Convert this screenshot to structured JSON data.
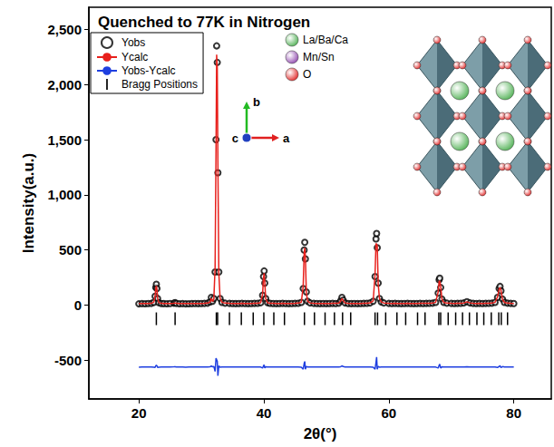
{
  "chart_data": {
    "type": "line",
    "title": "Quenched to 77K in Nitrogen",
    "x_label": "2θ(°)",
    "y_label": "Intensity(a.u.)",
    "xlim": [
      12,
      86
    ],
    "xticks": [
      20,
      40,
      60,
      80
    ],
    "ylim": [
      -850,
      2700
    ],
    "yticks": [
      -500,
      0,
      500,
      1000,
      1500,
      2000,
      2500
    ],
    "grid": false,
    "legend": "upper left",
    "x": [
      20,
      20.5,
      21,
      21.5,
      22,
      22.4,
      22.6,
      22.7,
      22.8,
      22.9,
      23.0,
      23.2,
      23.6,
      24,
      24.5,
      25,
      25.6,
      25.8,
      26,
      26.5,
      27,
      27.5,
      28,
      28.5,
      29,
      29.5,
      30,
      30.5,
      31,
      31.4,
      31.6,
      31.8,
      32.0,
      32.2,
      32.35,
      32.45,
      32.55,
      32.65,
      32.8,
      33.0,
      33.3,
      33.8,
      34.5,
      35,
      35.5,
      36,
      36.5,
      37,
      37.5,
      38,
      38.5,
      39,
      39.5,
      39.8,
      39.95,
      40.05,
      40.15,
      40.3,
      40.6,
      41,
      41.5,
      42,
      42.5,
      43,
      43.5,
      44,
      44.5,
      45,
      45.5,
      46,
      46.3,
      46.45,
      46.55,
      46.65,
      46.8,
      47,
      47.4,
      48,
      48.5,
      49,
      49.5,
      50,
      50.5,
      51,
      51.5,
      52,
      52.3,
      52.5,
      52.7,
      53,
      53.5,
      54,
      54.5,
      55,
      55.5,
      56,
      56.5,
      57,
      57.5,
      57.8,
      57.95,
      58.05,
      58.15,
      58.3,
      58.5,
      58.8,
      59.2,
      60,
      60.5,
      61,
      61.5,
      62,
      62.5,
      63,
      63.5,
      64,
      64.5,
      65,
      65.5,
      66,
      66.5,
      67,
      67.5,
      67.9,
      68.05,
      68.15,
      68.3,
      68.5,
      68.8,
      69.3,
      70,
      70.5,
      71,
      71.5,
      72,
      72.5,
      73,
      73.5,
      74,
      74.5,
      75,
      75.5,
      76,
      76.5,
      77,
      77.4,
      77.65,
      77.8,
      77.95,
      78.2,
      78.5,
      79,
      79.5,
      80
    ],
    "series": [
      {
        "name": "Yobs",
        "type": "scatter",
        "marker": "open_circle",
        "color": "#000000",
        "values": [
          12,
          14,
          13,
          15,
          16,
          25,
          80,
          160,
          190,
          150,
          60,
          22,
          15,
          14,
          13,
          15,
          18,
          22,
          16,
          13,
          14,
          12,
          13,
          14,
          15,
          14,
          15,
          16,
          18,
          30,
          70,
          35,
          60,
          300,
          1500,
          2350,
          2200,
          1200,
          300,
          60,
          25,
          18,
          16,
          15,
          14,
          15,
          16,
          15,
          14,
          15,
          16,
          17,
          22,
          90,
          260,
          310,
          200,
          60,
          22,
          17,
          15,
          14,
          15,
          16,
          15,
          14,
          15,
          16,
          17,
          25,
          150,
          500,
          570,
          420,
          120,
          35,
          20,
          16,
          15,
          14,
          15,
          14,
          15,
          16,
          15,
          18,
          40,
          70,
          45,
          20,
          15,
          14,
          15,
          14,
          15,
          16,
          17,
          20,
          35,
          260,
          600,
          650,
          520,
          200,
          60,
          28,
          20,
          16,
          15,
          16,
          15,
          14,
          15,
          16,
          15,
          14,
          15,
          16,
          15,
          16,
          17,
          18,
          25,
          110,
          230,
          245,
          160,
          55,
          25,
          18,
          16,
          15,
          16,
          17,
          20,
          32,
          20,
          16,
          15,
          16,
          15,
          16,
          17,
          18,
          25,
          70,
          150,
          170,
          130,
          55,
          25,
          18,
          16,
          15
        ]
      },
      {
        "name": "Ycalc",
        "type": "line",
        "line_style": "solid",
        "color": "#e8201c",
        "values": [
          14,
          14,
          14,
          15,
          16,
          28,
          85,
          150,
          175,
          140,
          65,
          24,
          16,
          15,
          14,
          15,
          17,
          20,
          16,
          14,
          14,
          14,
          14,
          14,
          15,
          15,
          15,
          16,
          18,
          28,
          62,
          33,
          55,
          340,
          1420,
          2270,
          2150,
          1280,
          290,
          62,
          26,
          18,
          16,
          15,
          15,
          15,
          16,
          15,
          15,
          15,
          16,
          17,
          23,
          100,
          250,
          290,
          210,
          58,
          22,
          17,
          16,
          15,
          15,
          16,
          15,
          15,
          15,
          16,
          18,
          27,
          170,
          470,
          520,
          440,
          115,
          36,
          20,
          16,
          15,
          15,
          15,
          15,
          15,
          16,
          16,
          18,
          38,
          60,
          42,
          20,
          16,
          15,
          15,
          15,
          15,
          16,
          17,
          21,
          38,
          280,
          560,
          560,
          540,
          195,
          62,
          28,
          20,
          16,
          15,
          16,
          15,
          15,
          15,
          16,
          15,
          15,
          15,
          16,
          16,
          16,
          17,
          18,
          26,
          120,
          215,
          220,
          170,
          54,
          25,
          18,
          16,
          15,
          16,
          17,
          20,
          30,
          20,
          16,
          15,
          16,
          15,
          16,
          17,
          18,
          26,
          75,
          145,
          160,
          135,
          52,
          25,
          18,
          16,
          15
        ]
      },
      {
        "name": "Yobs-Ycalc",
        "type": "line",
        "line_style": "solid",
        "color": "#1f3fe0",
        "values": [
          -562,
          -560,
          -561,
          -560,
          -560,
          -563,
          -565,
          -550,
          -545,
          -550,
          -565,
          -562,
          -561,
          -561,
          -561,
          -560,
          -559,
          -558,
          -560,
          -561,
          -560,
          -562,
          -561,
          -560,
          -560,
          -561,
          -560,
          -560,
          -560,
          -558,
          -552,
          -558,
          -555,
          -600,
          -480,
          -480,
          -510,
          -640,
          -550,
          -562,
          -561,
          -560,
          -560,
          -560,
          -561,
          -560,
          -560,
          -560,
          -561,
          -560,
          -560,
          -560,
          -561,
          -570,
          -550,
          -540,
          -570,
          -558,
          -560,
          -560,
          -561,
          -561,
          -560,
          -560,
          -560,
          -561,
          -560,
          -560,
          -561,
          -562,
          -580,
          -530,
          -510,
          -580,
          -555,
          -561,
          -560,
          -560,
          -560,
          -561,
          -560,
          -561,
          -560,
          -560,
          -561,
          -560,
          -558,
          -550,
          -557,
          -560,
          -561,
          -561,
          -560,
          -561,
          -560,
          -560,
          -560,
          -561,
          -563,
          -580,
          -520,
          -470,
          -580,
          -555,
          -562,
          -560,
          -560,
          -560,
          -560,
          -560,
          -560,
          -561,
          -560,
          -560,
          -560,
          -561,
          -560,
          -560,
          -561,
          -560,
          -560,
          -560,
          -561,
          -570,
          -545,
          -535,
          -570,
          -559,
          -560,
          -560,
          -560,
          -560,
          -560,
          -560,
          -560,
          -558,
          -560,
          -560,
          -560,
          -560,
          -560,
          -560,
          -560,
          -560,
          -561,
          -565,
          -555,
          -550,
          -565,
          -557,
          -560,
          -560,
          -560,
          -560
        ]
      },
      {
        "name": "Bragg Positions",
        "type": "ticks",
        "color": "#000000",
        "positions": [
          22.8,
          25.8,
          32.4,
          32.6,
          34.5,
          36.4,
          38.3,
          40.0,
          41.6,
          43.3,
          46.5,
          48.1,
          49.8,
          51.3,
          52.6,
          53.9,
          57.8,
          58.2,
          59.5,
          61.3,
          62.7,
          64.6,
          65.8,
          68.0,
          68.3,
          69.5,
          70.7,
          71.8,
          72.9,
          74.1,
          75.2,
          76.4,
          77.6,
          78.0,
          79.0
        ]
      }
    ],
    "annotations": {
      "atoms": [
        {
          "label": "La/Ba/Ca",
          "color": "#4caf50"
        },
        {
          "label": "Mn/Sn",
          "color": "#8e44ad"
        },
        {
          "label": "O",
          "color": "#e02020"
        }
      ],
      "axes": [
        {
          "label": "a",
          "color": "#e02020"
        },
        {
          "label": "b",
          "color": "#22bb22"
        },
        {
          "label": "c",
          "color": "#2040c0"
        }
      ]
    }
  }
}
